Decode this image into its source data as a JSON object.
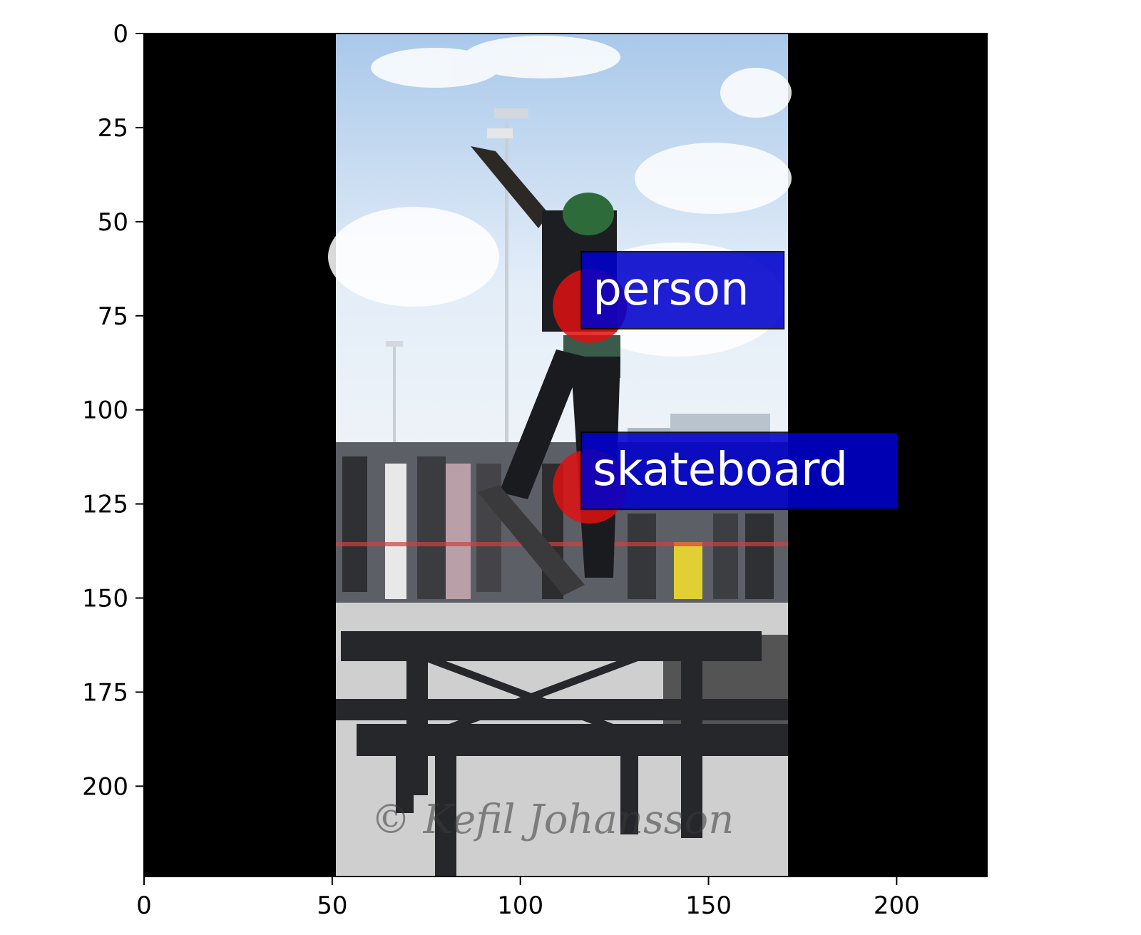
{
  "image_extent": {
    "x": [
      0,
      224
    ],
    "y": [
      0,
      224
    ]
  },
  "photo_extent": {
    "x": [
      51,
      171
    ],
    "y": [
      0,
      224
    ]
  },
  "x_ticks": [
    0,
    50,
    100,
    150,
    200
  ],
  "y_ticks": [
    0,
    25,
    50,
    75,
    100,
    125,
    150,
    175,
    200
  ],
  "colors": {
    "padding": "#000000",
    "marker": "#e01010",
    "label_box": "#0000cc",
    "label_text": "#ffffff",
    "sky": "#dfeaf6",
    "ground": "#cfcfcf"
  },
  "detections": [
    {
      "label": "person",
      "point": [
        120,
        72
      ]
    },
    {
      "label": "skateboard",
      "point": [
        120,
        120
      ]
    }
  ],
  "watermark": "© Kefil Johansson"
}
